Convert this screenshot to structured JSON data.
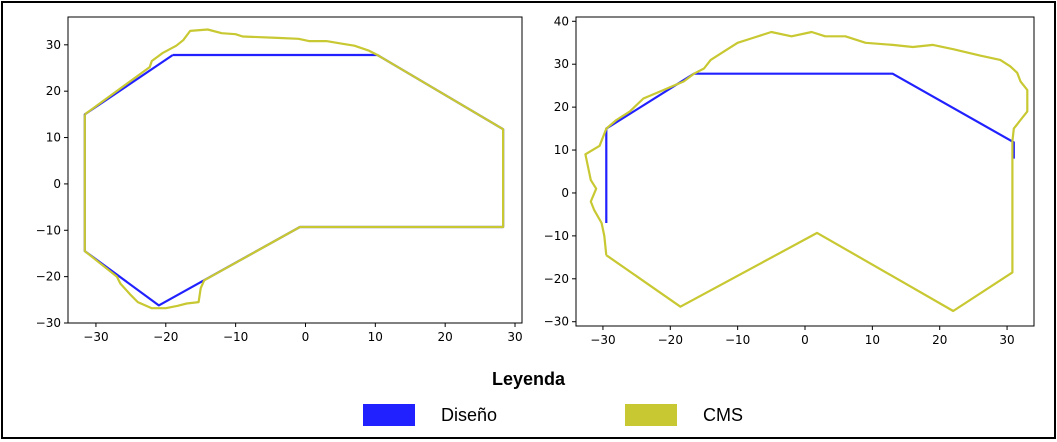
{
  "legend": {
    "title": "Leyenda",
    "items": [
      {
        "label": "Diseño",
        "color": "#2121ff"
      },
      {
        "label": "CMS",
        "color": "#c8c832"
      }
    ]
  },
  "chart_data": [
    {
      "type": "line",
      "xlim": [
        -34,
        31
      ],
      "ylim": [
        -30,
        36
      ],
      "xticks": [
        -30,
        -20,
        -10,
        0,
        10,
        20,
        30
      ],
      "yticks": [
        -30,
        -20,
        -10,
        0,
        10,
        20,
        30
      ],
      "grid": false,
      "series": [
        {
          "name": "Diseño",
          "color": "#2121ff",
          "points": [
            [
              -19,
              27.8
            ],
            [
              10.3,
              27.8
            ],
            [
              28.3,
              11.8
            ],
            [
              28.3,
              -9.3
            ],
            [
              -0.8,
              -9.3
            ],
            [
              -21,
              -26.2
            ],
            [
              -31.6,
              -14.5
            ],
            [
              -31.6,
              15
            ],
            [
              -19,
              27.8
            ]
          ]
        },
        {
          "name": "CMS",
          "color": "#c8c832",
          "points": [
            [
              -31.6,
              15
            ],
            [
              -22.3,
              25.2
            ],
            [
              -22,
              26.5
            ],
            [
              -20.5,
              28.2
            ],
            [
              -18.5,
              29.8
            ],
            [
              -17.5,
              31
            ],
            [
              -16.5,
              33
            ],
            [
              -14,
              33.3
            ],
            [
              -12,
              32.5
            ],
            [
              -10,
              32.3
            ],
            [
              -9,
              31.8
            ],
            [
              -4,
              31.5
            ],
            [
              -1,
              31.3
            ],
            [
              0.5,
              30.8
            ],
            [
              3,
              30.8
            ],
            [
              5,
              30.3
            ],
            [
              7,
              29.8
            ],
            [
              9,
              28.8
            ],
            [
              10.3,
              27.8
            ],
            [
              28.3,
              11.8
            ],
            [
              28.3,
              -9.3
            ],
            [
              -0.8,
              -9.3
            ],
            [
              -14.5,
              -20.8
            ],
            [
              -15,
              -22.5
            ],
            [
              -15.3,
              -25.5
            ],
            [
              -17,
              -25.8
            ],
            [
              -18.3,
              -26.3
            ],
            [
              -20,
              -26.8
            ],
            [
              -22,
              -26.8
            ],
            [
              -24,
              -25.5
            ],
            [
              -25,
              -24
            ],
            [
              -26.5,
              -21.5
            ],
            [
              -27,
              -20
            ],
            [
              -31.6,
              -14.5
            ],
            [
              -31.6,
              15
            ]
          ]
        }
      ]
    },
    {
      "type": "line",
      "xlim": [
        -34,
        34
      ],
      "ylim": [
        -31,
        41
      ],
      "xticks": [
        -30,
        -20,
        -10,
        0,
        10,
        20,
        30
      ],
      "yticks": [
        -30,
        -20,
        -10,
        0,
        10,
        20,
        30,
        40
      ],
      "grid": false,
      "series": [
        {
          "name": "Diseño",
          "color": "#2121ff",
          "points": [
            [
              -29.5,
              -7
            ],
            [
              -29.5,
              15
            ],
            [
              -16.5,
              27.8
            ],
            [
              13,
              27.8
            ],
            [
              31,
              11.8
            ],
            [
              31,
              8
            ]
          ]
        },
        {
          "name": "CMS",
          "color": "#c8c832",
          "points": [
            [
              -29.5,
              -14.5
            ],
            [
              -29.8,
              -10
            ],
            [
              -30.2,
              -7
            ],
            [
              -31.3,
              -4
            ],
            [
              -31.8,
              -2
            ],
            [
              -31,
              1
            ],
            [
              -31.8,
              3
            ],
            [
              -32.2,
              6
            ],
            [
              -32.6,
              9
            ],
            [
              -30.5,
              11
            ],
            [
              -29.5,
              15
            ],
            [
              -28,
              17
            ],
            [
              -26,
              19
            ],
            [
              -24,
              22
            ],
            [
              -21,
              24
            ],
            [
              -18,
              26
            ],
            [
              -16.5,
              27.8
            ],
            [
              -15,
              29
            ],
            [
              -14,
              31
            ],
            [
              -12,
              33
            ],
            [
              -10,
              35
            ],
            [
              -8,
              36
            ],
            [
              -5,
              37.5
            ],
            [
              -2,
              36.5
            ],
            [
              1,
              37.5
            ],
            [
              3,
              36.5
            ],
            [
              6,
              36.5
            ],
            [
              9,
              35
            ],
            [
              13,
              34.5
            ],
            [
              16,
              34
            ],
            [
              19,
              34.5
            ],
            [
              22,
              33.5
            ],
            [
              26,
              32
            ],
            [
              29,
              31
            ],
            [
              30.5,
              29.5
            ],
            [
              31.5,
              28
            ],
            [
              32,
              26
            ],
            [
              33,
              24
            ],
            [
              33,
              19
            ],
            [
              32,
              17
            ],
            [
              31,
              15
            ],
            [
              30.8,
              12
            ],
            [
              30.8,
              -18.5
            ],
            [
              22,
              -27.5
            ],
            [
              1.8,
              -9.3
            ],
            [
              -18.5,
              -26.5
            ],
            [
              -29.5,
              -14.5
            ]
          ]
        }
      ]
    }
  ]
}
